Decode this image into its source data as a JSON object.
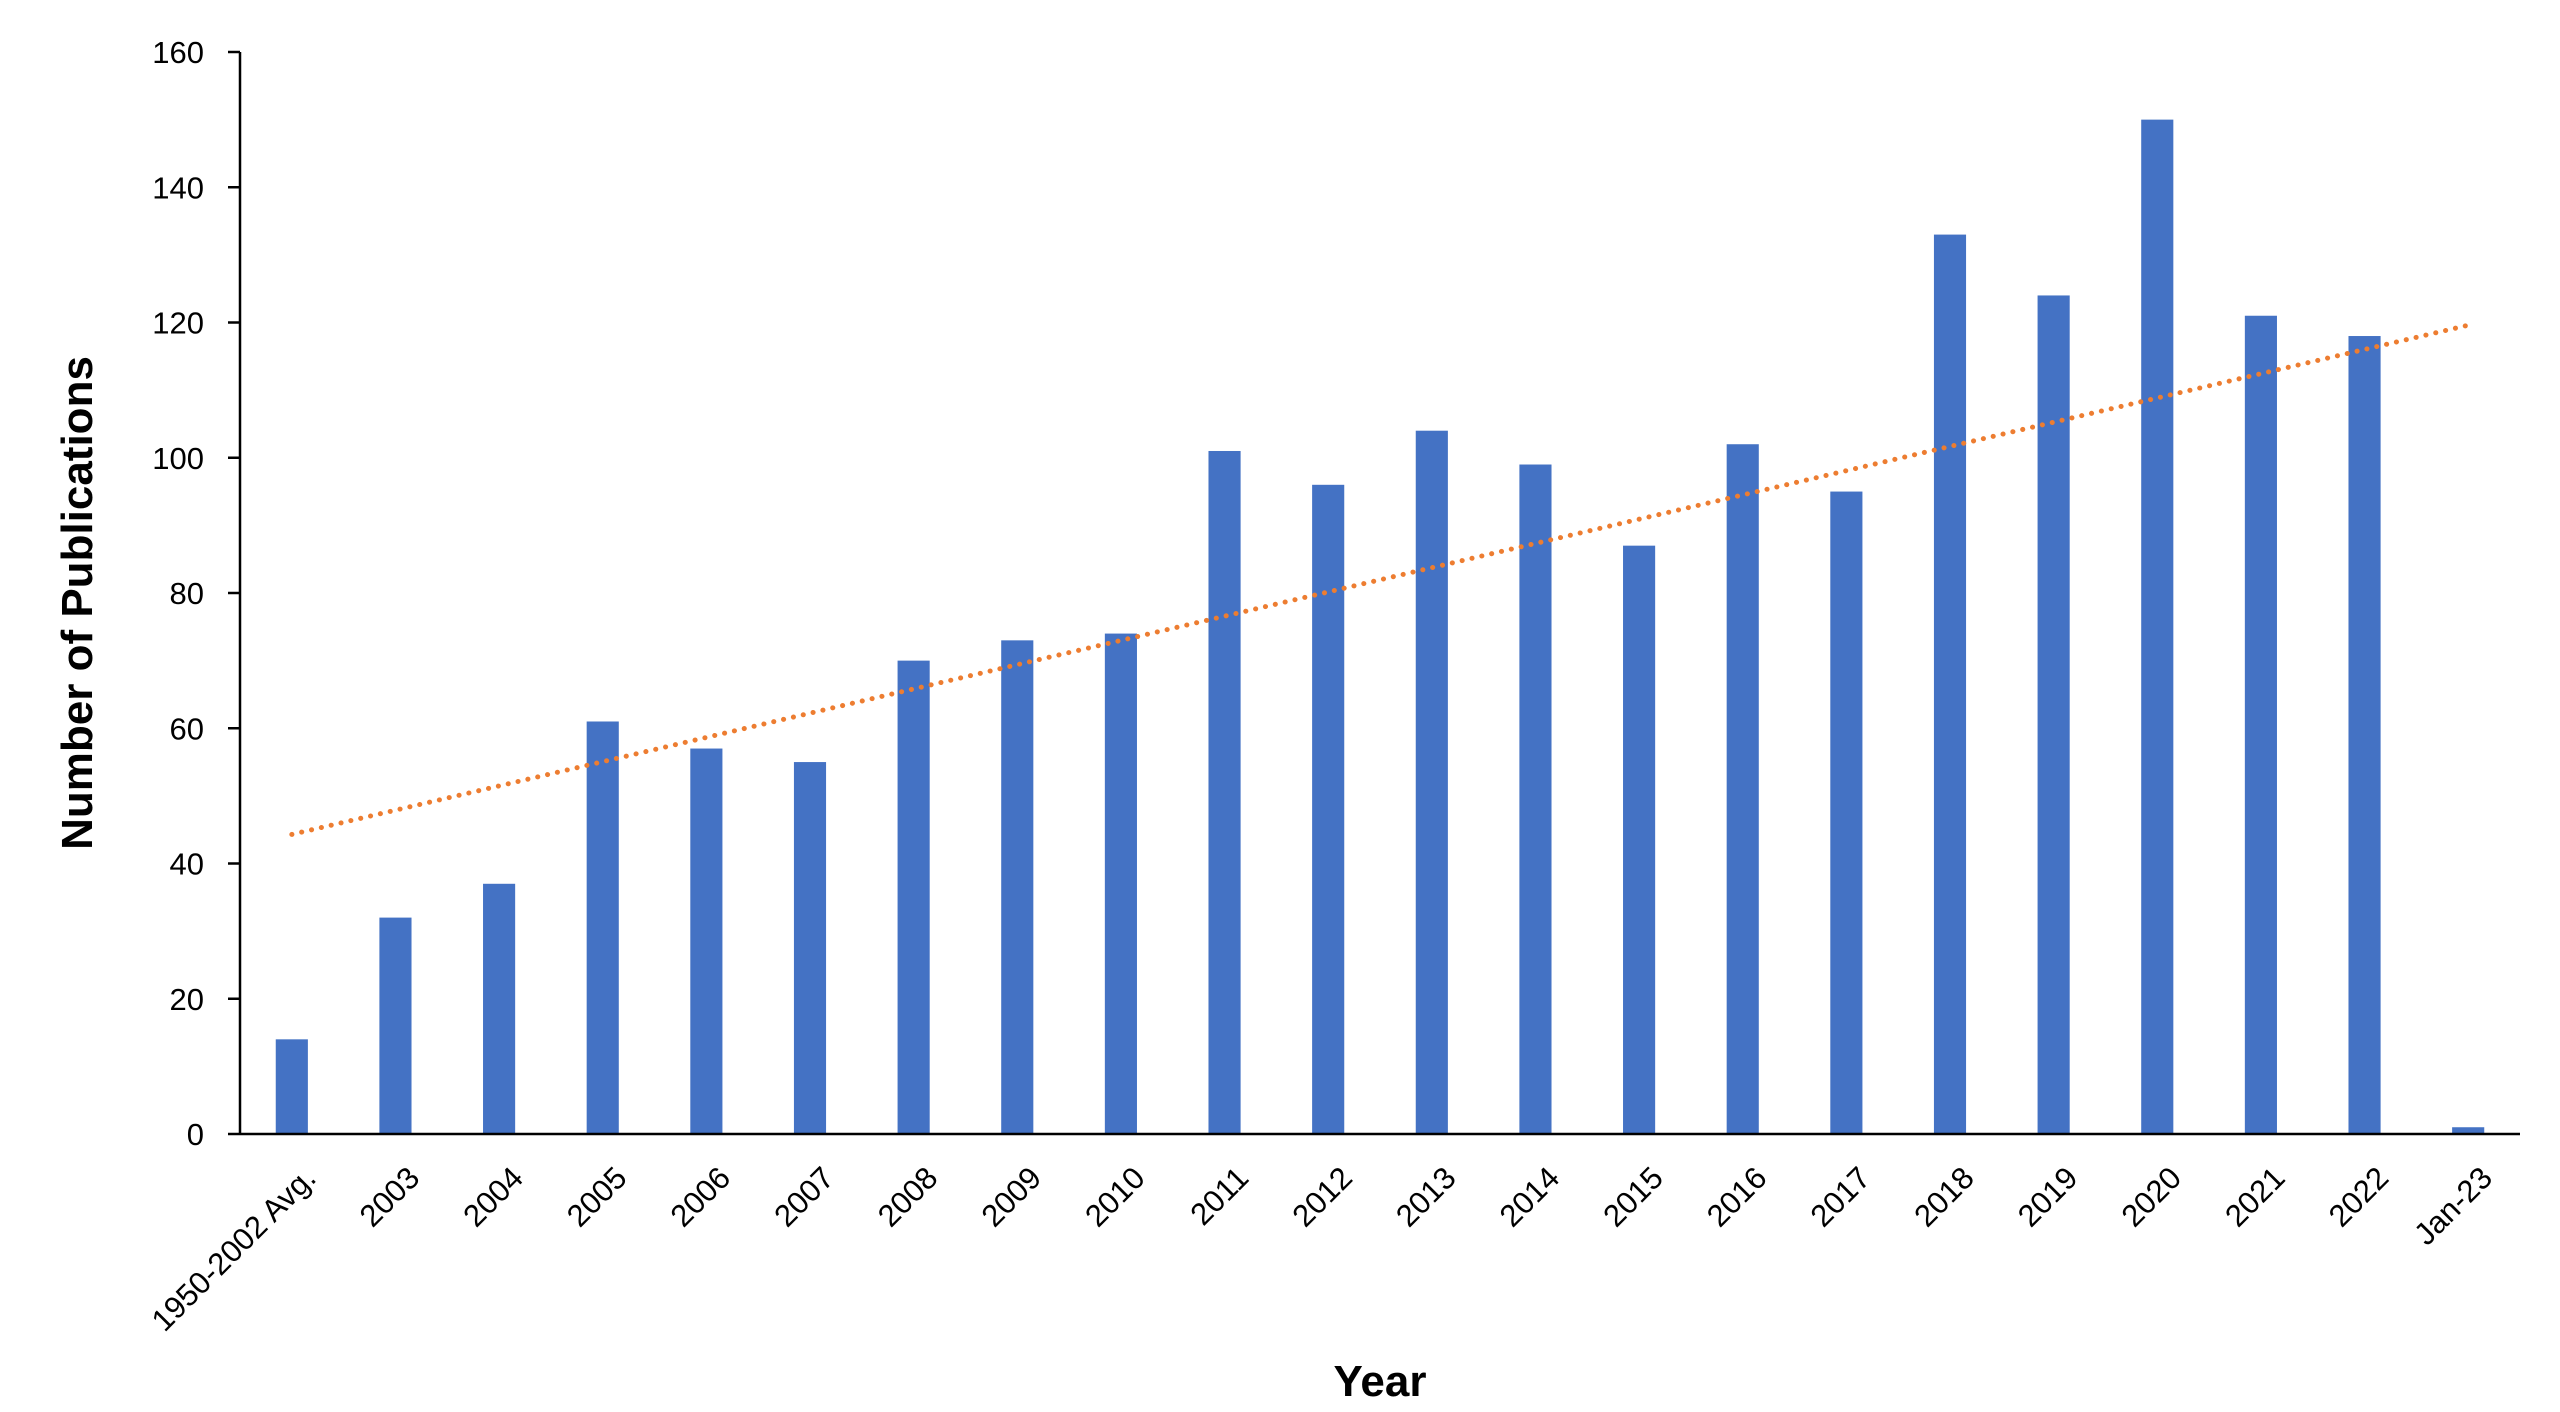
{
  "chart_data": {
    "type": "bar",
    "title": "",
    "xlabel": "Year",
    "ylabel": "Number of Publications",
    "ylim": [
      0,
      160
    ],
    "yticks": [
      "0",
      "20",
      "40",
      "60",
      "80",
      "100",
      "120",
      "140",
      "160"
    ],
    "ytick_values": [
      0,
      20,
      40,
      60,
      80,
      100,
      120,
      140,
      160
    ],
    "categories": [
      "1950-2002 Avg.",
      "2003",
      "2004",
      "2005",
      "2006",
      "2007",
      "2008",
      "2009",
      "2010",
      "2011",
      "2012",
      "2013",
      "2014",
      "2015",
      "2016",
      "2017",
      "2018",
      "2019",
      "2020",
      "2021",
      "2022",
      "Jan-23"
    ],
    "series": [
      {
        "name": "Publications",
        "type": "bar",
        "color": "#4472C4",
        "values": [
          14,
          32,
          37,
          61,
          57,
          55,
          70,
          73,
          74,
          101,
          96,
          104,
          99,
          87,
          102,
          95,
          133,
          124,
          150,
          121,
          118,
          1
        ]
      },
      {
        "name": "Linear trendline",
        "type": "line",
        "style": "dotted",
        "color": "#ED7D31",
        "start_value": 44.3,
        "end_value": 119.6
      }
    ],
    "grid": false,
    "legend": "none"
  }
}
